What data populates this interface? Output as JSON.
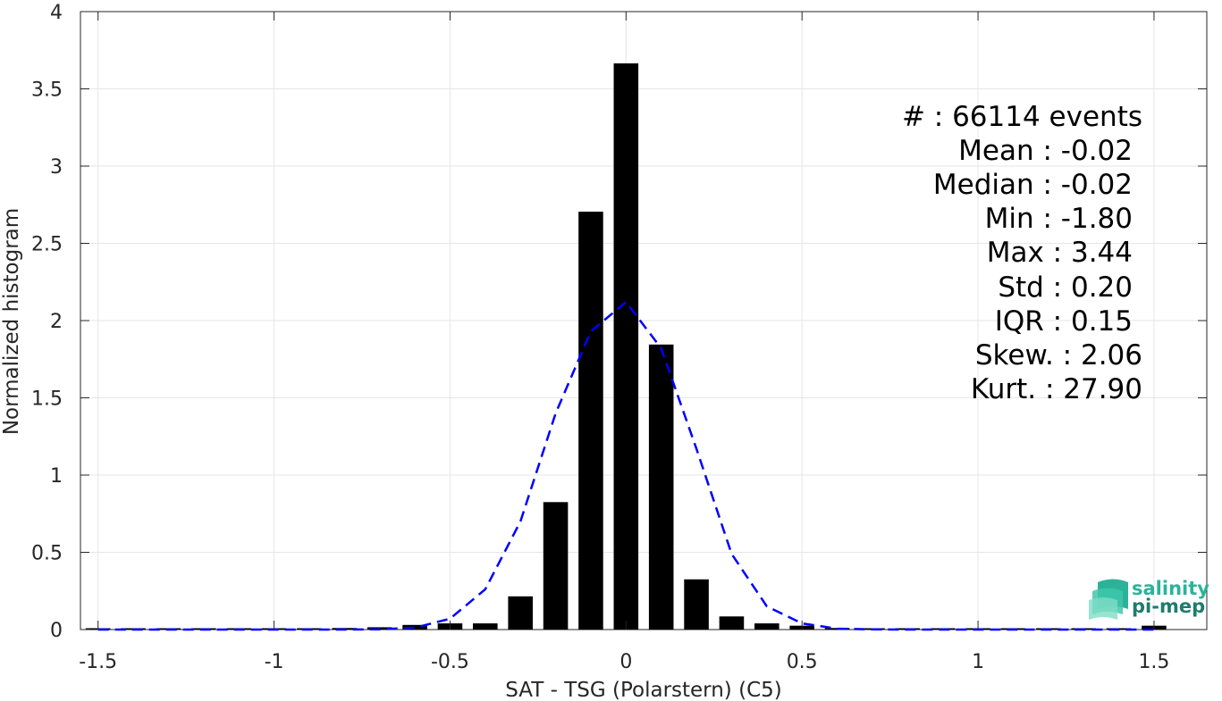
{
  "chart_data": {
    "type": "bar",
    "xlabel": "SAT - TSG (Polarstern) (C5)",
    "ylabel": "Normalized histogram",
    "xlim": [
      -1.55,
      1.65
    ],
    "ylim": [
      0,
      4
    ],
    "xticks": [
      -1.5,
      -1,
      -0.5,
      0,
      0.5,
      1,
      1.5
    ],
    "xtick_labels": [
      "-1.5",
      "-1",
      "-0.5",
      "0",
      "0.5",
      "1",
      "1.5"
    ],
    "yticks": [
      0,
      0.5,
      1,
      1.5,
      2,
      2.5,
      3,
      3.5,
      4
    ],
    "ytick_labels": [
      "0",
      "0.5",
      "1",
      "1.5",
      "2",
      "2.5",
      "3",
      "3.5",
      "4"
    ],
    "grid": true,
    "bar_color": "#000000",
    "bar_width": 0.07,
    "bars": {
      "x": [
        -1.5,
        -1.4,
        -1.3,
        -1.2,
        -1.1,
        -1.0,
        -0.9,
        -0.8,
        -0.7,
        -0.6,
        -0.5,
        -0.4,
        -0.3,
        -0.2,
        -0.1,
        0.0,
        0.1,
        0.2,
        0.3,
        0.4,
        0.5,
        0.6,
        0.7,
        0.8,
        0.9,
        1.0,
        1.1,
        1.2,
        1.3,
        1.4,
        1.5
      ],
      "values": [
        0.003,
        0.003,
        0.003,
        0.003,
        0.004,
        0.005,
        0.007,
        0.01,
        0.015,
        0.03,
        0.04,
        0.04,
        0.215,
        0.825,
        2.705,
        3.665,
        1.845,
        0.325,
        0.085,
        0.04,
        0.025,
        0.01,
        0.006,
        0.006,
        0.005,
        0.005,
        0.004,
        0.006,
        0.006,
        0.007,
        0.025
      ]
    },
    "fit_curve": {
      "color": "#0000ff",
      "style": "dashed",
      "x": [
        -1.5,
        -1.4,
        -1.3,
        -1.2,
        -1.1,
        -1.0,
        -0.9,
        -0.8,
        -0.7,
        -0.6,
        -0.5,
        -0.4,
        -0.3,
        -0.2,
        -0.1,
        0.0,
        0.1,
        0.2,
        0.3,
        0.4,
        0.5,
        0.6,
        0.7,
        0.8,
        0.9,
        1.0,
        1.1,
        1.2,
        1.3,
        1.4,
        1.5
      ],
      "values": [
        0,
        0,
        0,
        0,
        0,
        0,
        0,
        0,
        0.002,
        0.012,
        0.07,
        0.26,
        0.7,
        1.4,
        1.93,
        2.12,
        1.82,
        1.17,
        0.49,
        0.15,
        0.04,
        0.006,
        0.001,
        0,
        0,
        0,
        0,
        0,
        0,
        0,
        0
      ]
    }
  },
  "stats": {
    "events": "#  : 66114 events",
    "mean": "Mean : -0.02",
    "median": "Median : -0.02",
    "min": "Min : -1.80",
    "max": "Max : 3.44",
    "std": "Std : 0.20",
    "iqr": "IQR : 0.15",
    "skew": "Skew. : 2.06",
    "kurt": "Kurt. : 27.90"
  },
  "logo": {
    "line1": "salinity",
    "line2": "pi-mep",
    "color1": "#2bb39a",
    "color2": "#1d7d6c"
  }
}
